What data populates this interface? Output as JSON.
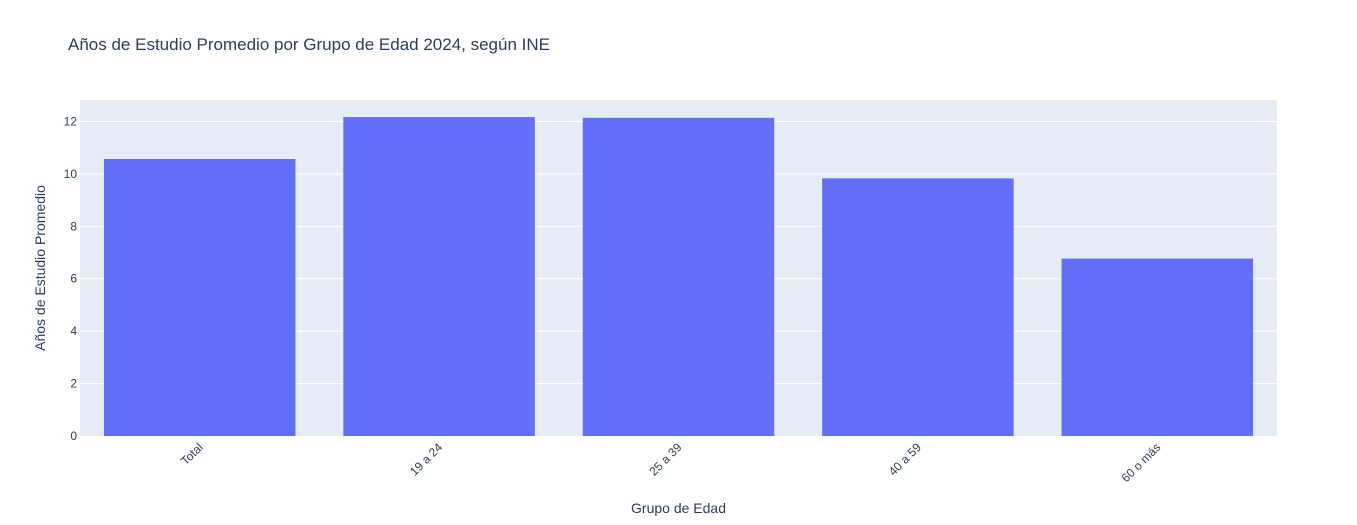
{
  "chart_data": {
    "type": "bar",
    "title": "Años de Estudio Promedio por Grupo de Edad 2024, según INE",
    "xlabel": "Grupo de Edad",
    "ylabel": "Años de Estudio Promedio",
    "categories": [
      "Total",
      "19 a 24",
      "25 a 39",
      "40 a 59",
      "60 o más"
    ],
    "values": [
      10.57,
      12.17,
      12.14,
      9.83,
      6.77
    ],
    "ylim": [
      0,
      12.82
    ],
    "yticks": [
      0,
      2,
      4,
      6,
      8,
      10,
      12
    ],
    "grid": true,
    "bar_color": "#636efa",
    "plot_background": "#e5ecf6"
  }
}
